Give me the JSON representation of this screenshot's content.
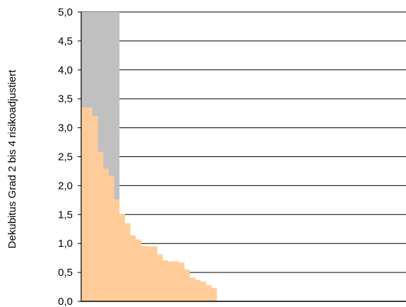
{
  "chart_data": {
    "type": "bar",
    "ylabel": "Dekubitus Grad 2 bis 4 risikoadjustiert",
    "xlabel": "",
    "ylim": [
      0,
      5
    ],
    "yticks": [
      "0,0",
      "0,5",
      "1,0",
      "1,5",
      "2,0",
      "2,5",
      "3,0",
      "3,5",
      "4,0",
      "4,5",
      "5,0"
    ],
    "grid": true,
    "bar_slots": 60,
    "colors": {
      "bar": "#FFCC99",
      "upper_range": "#C0C0C0",
      "grid": "#000000",
      "axis": "#000000"
    },
    "upper_range": {
      "first_bar": 1,
      "last_bar": 7,
      "value": 5.0
    },
    "values": [
      3.35,
      3.35,
      3.2,
      2.58,
      2.29,
      2.17,
      1.76,
      1.51,
      1.35,
      1.14,
      1.07,
      0.96,
      0.95,
      0.95,
      0.81,
      0.71,
      0.69,
      0.69,
      0.67,
      0.55,
      0.41,
      0.37,
      0.34,
      0.28,
      0.23
    ]
  }
}
